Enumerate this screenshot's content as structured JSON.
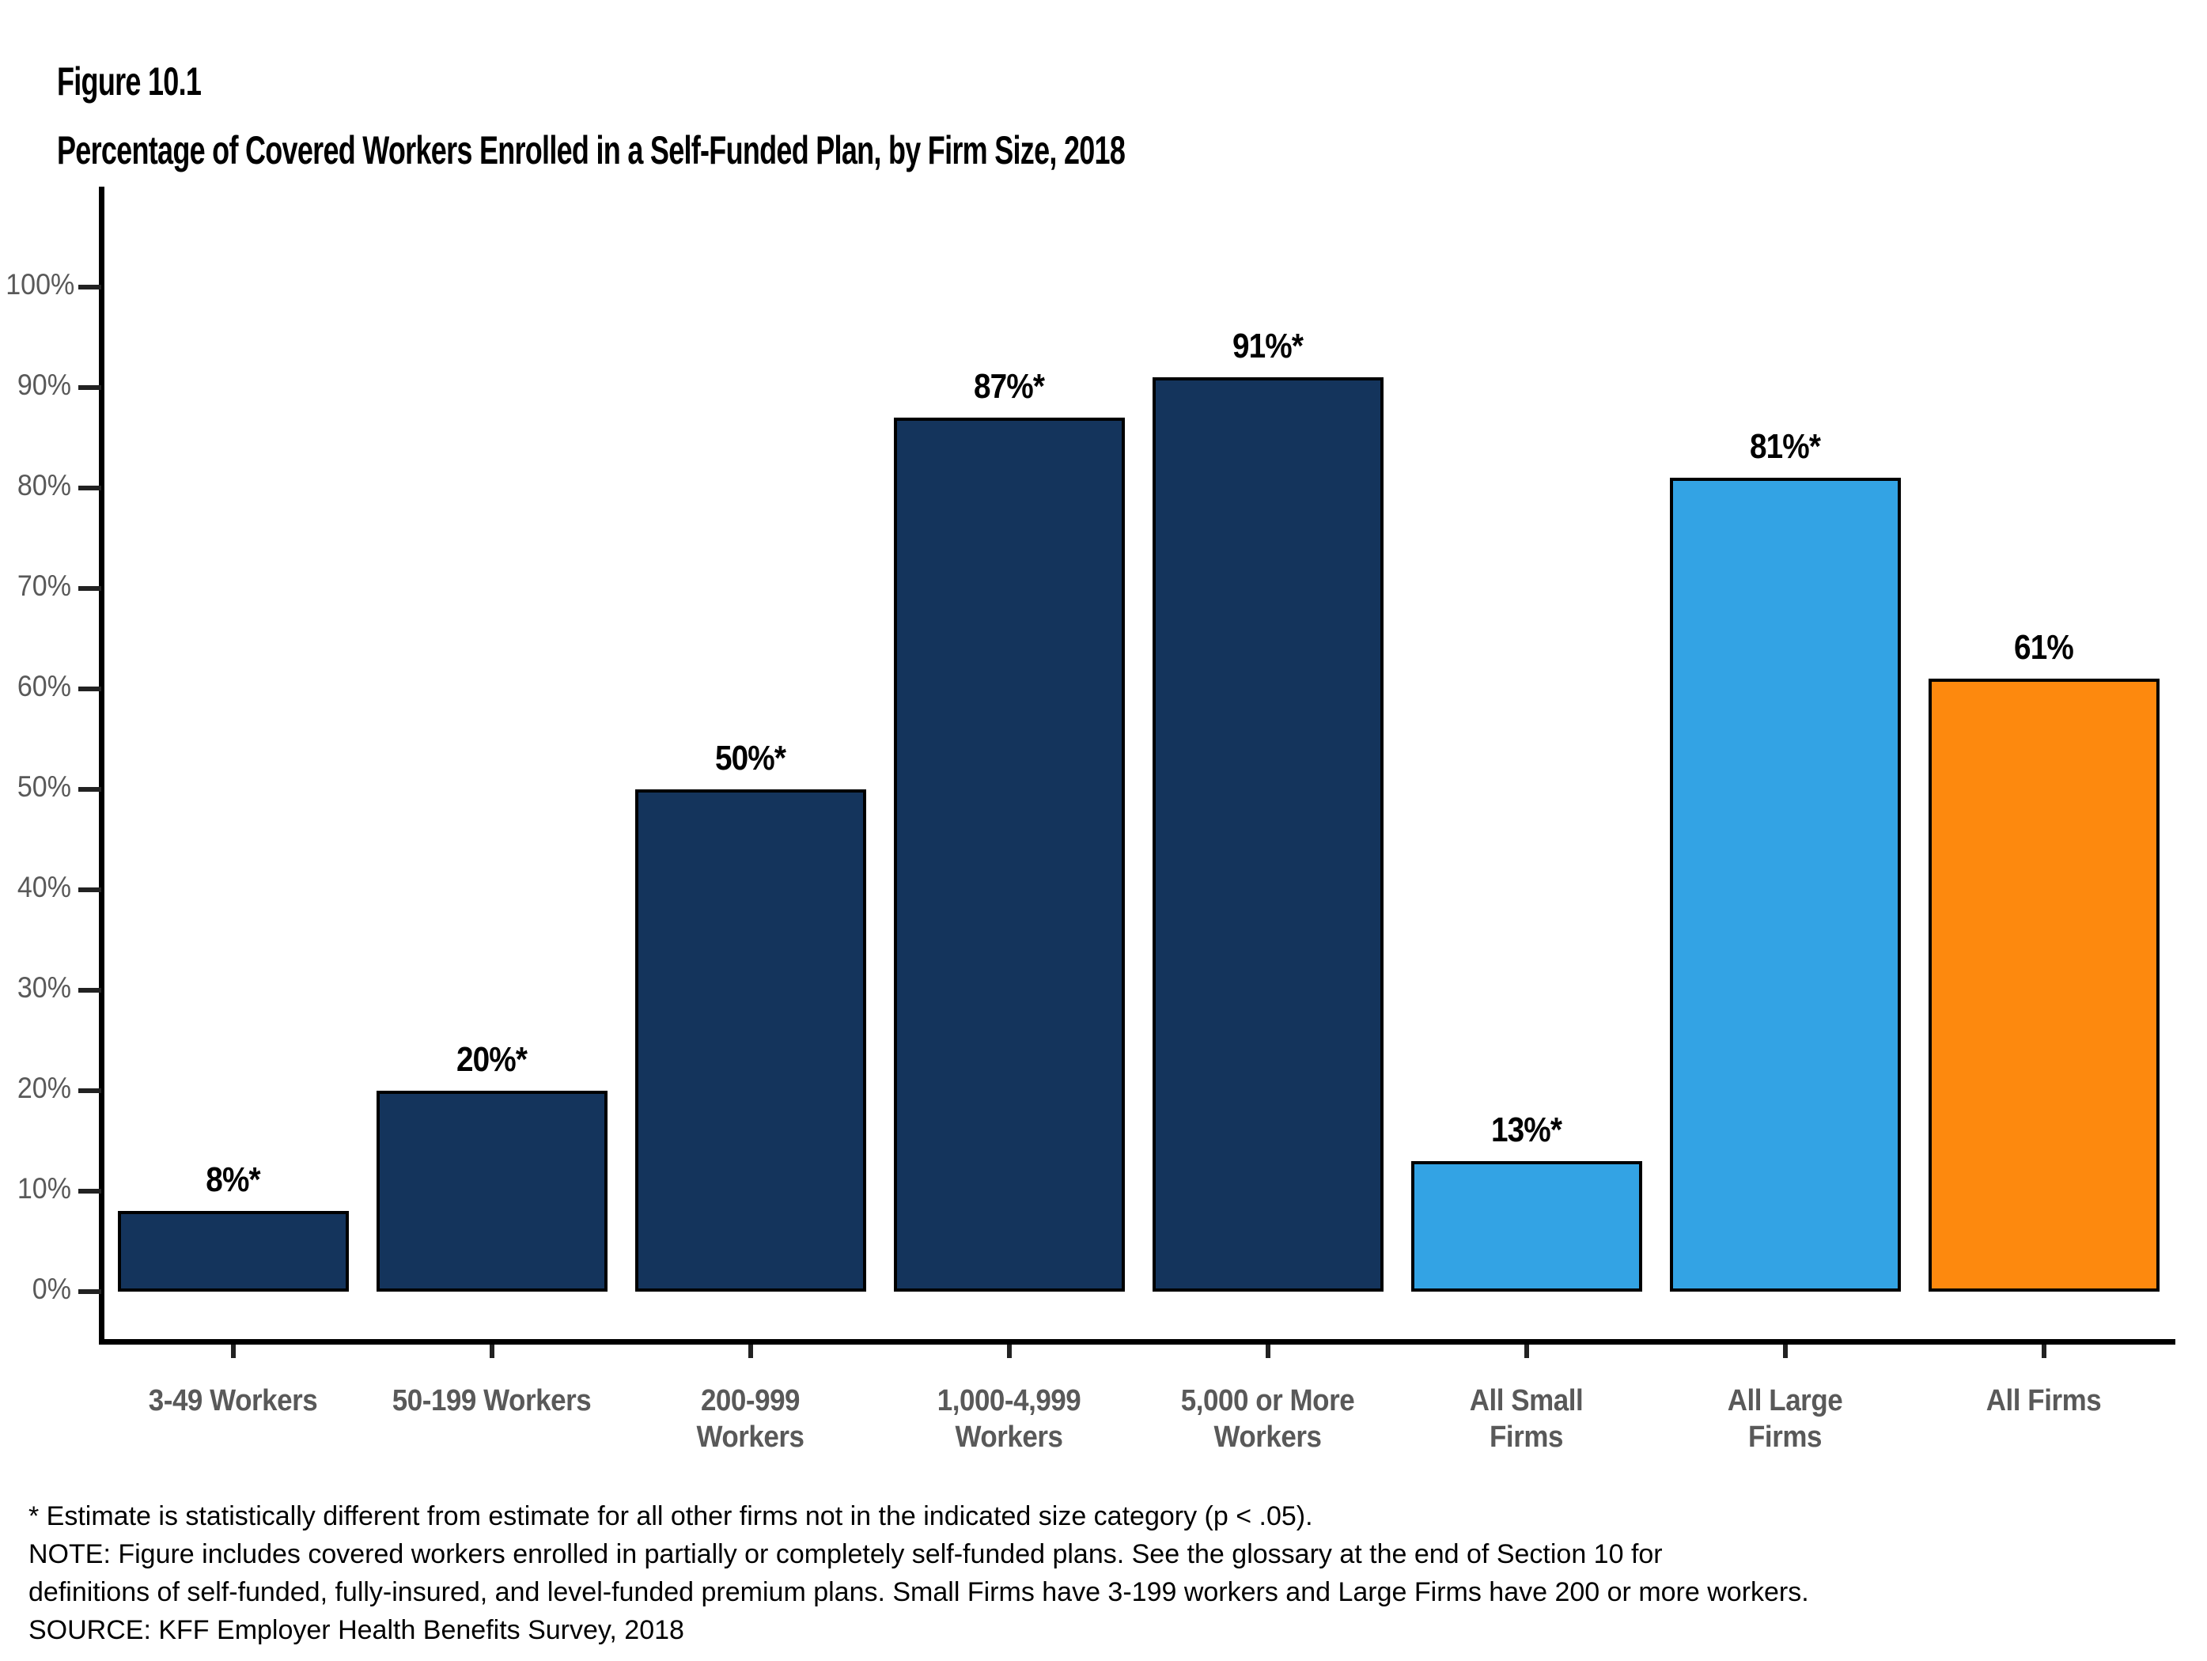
{
  "figure": {
    "label": "Figure 10.1",
    "title": "Percentage of Covered Workers Enrolled in a Self-Funded Plan, by Firm Size, 2018"
  },
  "chart_data": {
    "type": "bar",
    "title": "Percentage of Covered Workers Enrolled in a Self-Funded Plan, by Firm Size, 2018",
    "categories": [
      "3-49 Workers",
      "50-199 Workers",
      "200-999\nWorkers",
      "1,000-4,999\nWorkers",
      "5,000 or More\nWorkers",
      "All Small\nFirms",
      "All Large\nFirms",
      "All Firms"
    ],
    "values": [
      8,
      20,
      50,
      87,
      91,
      13,
      81,
      61
    ],
    "bar_labels": [
      "8%*",
      "20%*",
      "50%*",
      "87%*",
      "91%*",
      "13%*",
      "81%*",
      "61%"
    ],
    "bar_colors": [
      "#14345C",
      "#14345C",
      "#14345C",
      "#14345C",
      "#14345C",
      "#33A3E4",
      "#33A3E4",
      "#FD890E"
    ],
    "color_legend": {
      "navy": "#14345C",
      "light_blue": "#33A3E4",
      "orange": "#FD890E"
    },
    "xlabel": "",
    "ylabel": "",
    "ylim": [
      0,
      100
    ],
    "ytick_step": 10,
    "ytick_labels": [
      "0%",
      "10%",
      "20%",
      "30%",
      "40%",
      "50%",
      "60%",
      "70%",
      "80%",
      "90%",
      "100%"
    ],
    "grid": false,
    "legend_position": "none"
  },
  "footnotes": {
    "asterisk": "* Estimate is statistically different from estimate for all other firms not in the indicated size category (p < .05).",
    "note_line1": "NOTE: Figure includes covered workers enrolled in partially or completely self-funded plans. See the glossary at the end of Section 10 for",
    "note_line2": "definitions of self-funded, fully-insured, and level-funded premium plans. Small Firms have 3-199 workers and Large Firms have 200 or more workers.",
    "source": "SOURCE: KFF Employer Health Benefits Survey, 2018"
  }
}
